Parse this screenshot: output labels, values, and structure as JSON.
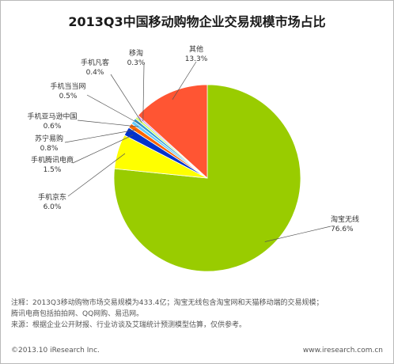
{
  "title": "2013Q3中国移动购物企业交易规模市场占比",
  "chart_data": {
    "type": "pie",
    "title": "2013Q3中国移动购物企业交易规模市场占比",
    "unit": "%",
    "slices": [
      {
        "name": "淘宝无线",
        "value": 76.6,
        "display": "76.6%",
        "color": "#99cc00"
      },
      {
        "name": "手机京东",
        "value": 6.0,
        "display": "6.0%",
        "color": "#ffff00"
      },
      {
        "name": "手机腾讯电商",
        "value": 1.5,
        "display": "1.5%",
        "color": "#0033cc"
      },
      {
        "name": "苏宁易购",
        "value": 0.8,
        "display": "0.8%",
        "color": "#ff6600"
      },
      {
        "name": "手机亚马逊中国",
        "value": 0.6,
        "display": "0.6%",
        "color": "#66ccff"
      },
      {
        "name": "手机当当网",
        "value": 0.5,
        "display": "0.5%",
        "color": "#3399cc"
      },
      {
        "name": "手机凡客",
        "value": 0.4,
        "display": "0.4%",
        "color": "#ccff66"
      },
      {
        "name": "移淘",
        "value": 0.3,
        "display": "0.3%",
        "color": "#cc99ff"
      },
      {
        "name": "其他",
        "value": 13.3,
        "display": "13.3%",
        "color": "#ff5533"
      }
    ]
  },
  "notes": {
    "line1": "注释：2013Q3移动购物市场交易规模为433.4亿；淘宝无线包含淘宝网和天猫移动端的交易规模；",
    "line2": "腾讯电商包括拍拍网、QQ网购、易迅网。",
    "line3": "来源：根据企业公开财报、行业访谈及艾瑞统计预测模型估算，仅供参考。"
  },
  "footer": {
    "copyright": "©2013.10 iResearch Inc.",
    "website": "www.iresearch.com.cn"
  }
}
